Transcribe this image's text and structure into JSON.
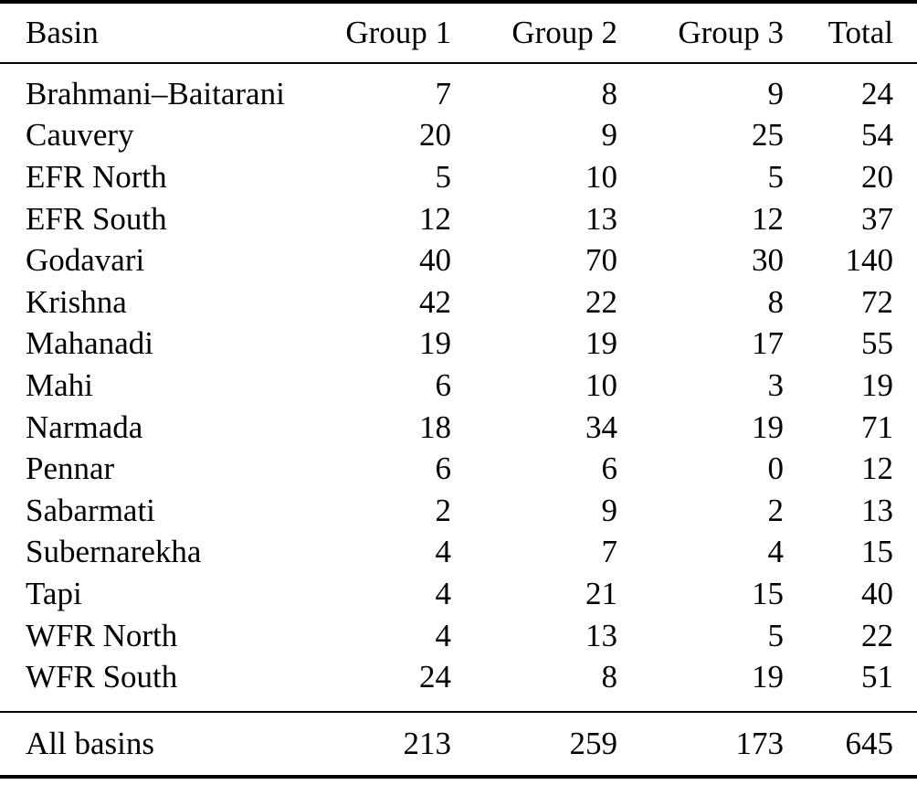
{
  "colors": {
    "background": "#ffffff",
    "text": "#000000",
    "rule": "#000000"
  },
  "chart_data": {
    "type": "table",
    "title": "",
    "columns": [
      "Basin",
      "Group 1",
      "Group 2",
      "Group 3",
      "Total"
    ],
    "rows": [
      [
        "Brahmani–Baitarani",
        7,
        8,
        9,
        24
      ],
      [
        "Cauvery",
        20,
        9,
        25,
        54
      ],
      [
        "EFR North",
        5,
        10,
        5,
        20
      ],
      [
        "EFR South",
        12,
        13,
        12,
        37
      ],
      [
        "Godavari",
        40,
        70,
        30,
        140
      ],
      [
        "Krishna",
        42,
        22,
        8,
        72
      ],
      [
        "Mahanadi",
        19,
        19,
        17,
        55
      ],
      [
        "Mahi",
        6,
        10,
        3,
        19
      ],
      [
        "Narmada",
        18,
        34,
        19,
        71
      ],
      [
        "Pennar",
        6,
        6,
        0,
        12
      ],
      [
        "Sabarmati",
        2,
        9,
        2,
        13
      ],
      [
        "Subernarekha",
        4,
        7,
        4,
        15
      ],
      [
        "Tapi",
        4,
        21,
        15,
        40
      ],
      [
        "WFR North",
        4,
        13,
        5,
        22
      ],
      [
        "WFR South",
        24,
        8,
        19,
        51
      ]
    ],
    "footer": [
      "All basins",
      213,
      259,
      173,
      645
    ]
  }
}
